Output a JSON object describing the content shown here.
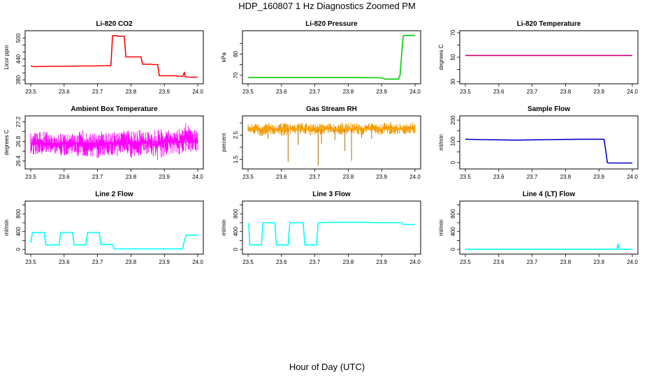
{
  "page": {
    "title": "HDP_160807  1 Hz Diagnostics Zoomed PM",
    "xlabel": "Hour of Day (UTC)"
  },
  "chart_data": [
    {
      "type": "line",
      "title": "Li-820 CO2",
      "ylabel": "Licor ppm",
      "color": "#ff0000",
      "xlim": [
        23.5,
        24.0
      ],
      "ylim": [
        375,
        515
      ],
      "xticks": [
        "23.5",
        "23.6",
        "23.7",
        "23.8",
        "23.9",
        "24.0"
      ],
      "yticks": [
        380,
        440,
        500
      ],
      "yticks_minor": [
        400,
        420,
        460,
        480
      ],
      "series": [
        {
          "x": [
            23.5,
            23.51,
            23.55,
            23.6,
            23.65,
            23.69,
            23.73,
            23.74,
            23.745,
            23.76,
            23.76,
            23.78,
            23.785,
            23.83,
            23.835,
            23.86,
            23.865,
            23.88,
            23.885,
            23.93,
            23.955,
            23.96,
            23.962,
            23.97,
            24.0
          ],
          "y": [
            420,
            418,
            419,
            419,
            420,
            420,
            421,
            421,
            507,
            507,
            505,
            505,
            446,
            446,
            425,
            425,
            424,
            424,
            392,
            392,
            390,
            402,
            390,
            388,
            388
          ]
        }
      ]
    },
    {
      "type": "line",
      "title": "Li-820 Pressure",
      "ylabel": "kPa",
      "color": "#00cc00",
      "xlim": [
        23.5,
        24.0
      ],
      "ylim": [
        67,
        90
      ],
      "xticks": [
        "23.5",
        "23.6",
        "23.7",
        "23.8",
        "23.9",
        "24.0"
      ],
      "yticks": [
        70,
        80
      ],
      "yticks_minor": [
        75,
        85
      ],
      "series": [
        {
          "x": [
            23.5,
            23.6,
            23.7,
            23.8,
            23.9,
            23.91,
            23.95,
            23.955,
            23.96,
            23.963,
            23.965,
            23.97,
            24.0
          ],
          "y": [
            69,
            69,
            69,
            69,
            68.8,
            68.2,
            68.2,
            70,
            80,
            86,
            88.5,
            88.8,
            88.8
          ]
        }
      ]
    },
    {
      "type": "line",
      "title": "Li-820 Temperature",
      "ylabel": "degrees C",
      "color": "#cc0077",
      "xlim": [
        23.5,
        24.0
      ],
      "ylim": [
        30,
        70
      ],
      "xticks": [
        "23.5",
        "23.6",
        "23.7",
        "23.8",
        "23.9",
        "24.0"
      ],
      "yticks": [
        30,
        50,
        70
      ],
      "yticks_minor": [
        40,
        60
      ],
      "series": [
        {
          "x": [
            23.5,
            24.0
          ],
          "y": [
            51.5,
            51.5
          ]
        }
      ]
    },
    {
      "type": "line",
      "title": "Ambient Box Temperature",
      "ylabel": "degrees C",
      "color": "#ff00ff",
      "xlim": [
        23.5,
        24.0
      ],
      "ylim": [
        26.28,
        27.28
      ],
      "xticks": [
        "23.5",
        "23.6",
        "23.7",
        "23.8",
        "23.9",
        "24.0"
      ],
      "yticks": [
        26.4,
        26.8,
        27.2
      ],
      "yticks_minor": [
        26.6,
        27.0
      ],
      "series": [
        {
          "x": [
            23.5,
            23.52,
            23.54,
            23.56,
            23.58,
            23.6,
            23.62,
            23.64,
            23.66,
            23.68,
            23.7,
            23.72,
            23.74,
            23.76,
            23.78,
            23.8,
            23.82,
            23.84,
            23.86,
            23.88,
            23.9,
            23.92,
            23.94,
            23.96,
            23.98,
            24.0
          ],
          "y": [
            26.75,
            26.75,
            26.76,
            26.75,
            26.76,
            26.75,
            26.75,
            26.76,
            26.75,
            26.76,
            26.76,
            26.76,
            26.77,
            26.77,
            26.77,
            26.77,
            26.78,
            26.78,
            26.78,
            26.79,
            26.79,
            26.8,
            26.8,
            26.8,
            26.81,
            26.81
          ]
        }
      ],
      "band": {
        "x": [
          23.5,
          23.52,
          23.54,
          23.56,
          23.58,
          23.6,
          23.62,
          23.64,
          23.66,
          23.68,
          23.7,
          23.72,
          23.74,
          23.76,
          23.78,
          23.8,
          23.82,
          23.84,
          23.86,
          23.88,
          23.9,
          23.92,
          23.94,
          23.96,
          23.98,
          24.0
        ],
        "lo": [
          26.55,
          26.5,
          26.5,
          26.55,
          26.5,
          26.5,
          26.55,
          26.5,
          26.45,
          26.45,
          26.45,
          26.5,
          26.5,
          26.5,
          26.55,
          26.45,
          26.5,
          26.55,
          26.5,
          26.4,
          26.5,
          26.55,
          26.5,
          26.55,
          26.55,
          26.6
        ],
        "hi": [
          27.0,
          27.0,
          27.0,
          27.0,
          26.95,
          27.0,
          26.95,
          27.0,
          27.05,
          27.0,
          27.0,
          27.0,
          27.0,
          27.0,
          27.05,
          27.0,
          27.05,
          27.0,
          27.0,
          27.05,
          27.05,
          27.05,
          27.05,
          27.2,
          27.1,
          27.0
        ]
      }
    },
    {
      "type": "line",
      "title": "Gas Stream RH",
      "ylabel": "percent",
      "color": "#ffa500",
      "color_dark": "#b06e00",
      "xlim": [
        23.5,
        24.0
      ],
      "ylim": [
        1.2,
        3.2
      ],
      "xticks": [
        "23.5",
        "23.6",
        "23.7",
        "23.8",
        "23.9",
        "24.0"
      ],
      "yticks": [
        1.5,
        2.5
      ],
      "yticks_minor": [
        2.0,
        3.0
      ],
      "series": [
        {
          "x": [
            23.5,
            23.52,
            23.54,
            23.56,
            23.58,
            23.6,
            23.62,
            23.64,
            23.66,
            23.68,
            23.7,
            23.72,
            23.74,
            23.76,
            23.78,
            23.8,
            23.82,
            23.84,
            23.86,
            23.88,
            23.9,
            23.92,
            23.94,
            23.96,
            23.98,
            24.0
          ],
          "y": [
            2.75,
            2.75,
            2.74,
            2.75,
            2.75,
            2.74,
            2.75,
            2.74,
            2.75,
            2.75,
            2.74,
            2.75,
            2.75,
            2.74,
            2.75,
            2.75,
            2.74,
            2.75,
            2.75,
            2.74,
            2.75,
            2.75,
            2.74,
            2.75,
            2.75,
            2.74
          ]
        }
      ],
      "band": {
        "x": [
          23.5,
          23.52,
          23.54,
          23.56,
          23.58,
          23.6,
          23.62,
          23.64,
          23.66,
          23.68,
          23.7,
          23.72,
          23.74,
          23.76,
          23.78,
          23.8,
          23.82,
          23.84,
          23.86,
          23.88,
          23.9,
          23.92,
          23.94,
          23.96,
          23.98,
          24.0
        ],
        "lo": [
          2.55,
          2.5,
          2.45,
          2.55,
          2.5,
          2.45,
          2.5,
          2.55,
          2.5,
          2.5,
          2.45,
          2.5,
          2.55,
          2.5,
          2.45,
          2.5,
          2.55,
          2.5,
          2.55,
          2.5,
          2.5,
          2.55,
          2.5,
          2.55,
          2.5,
          2.5
        ],
        "hi": [
          2.95,
          3.0,
          2.95,
          3.0,
          2.95,
          3.0,
          3.0,
          2.95,
          3.0,
          3.0,
          2.95,
          3.0,
          3.0,
          2.95,
          3.0,
          3.0,
          3.0,
          2.95,
          3.0,
          3.0,
          3.0,
          3.05,
          3.0,
          3.0,
          3.05,
          3.05
        ]
      },
      "spikes": [
        {
          "x": 23.56,
          "y": 2.35
        },
        {
          "x": 23.62,
          "y": 1.4
        },
        {
          "x": 23.65,
          "y": 2.1
        },
        {
          "x": 23.71,
          "y": 1.25
        },
        {
          "x": 23.72,
          "y": 2.15
        },
        {
          "x": 23.76,
          "y": 2.3
        },
        {
          "x": 23.79,
          "y": 1.85
        },
        {
          "x": 23.81,
          "y": 1.45
        },
        {
          "x": 23.84,
          "y": 2.4
        },
        {
          "x": 23.87,
          "y": 2.35
        }
      ]
    },
    {
      "type": "line",
      "title": "Sample Flow",
      "ylabel": "ml/min",
      "color": "#0000cc",
      "xlim": [
        23.5,
        24.0
      ],
      "ylim": [
        -20,
        210
      ],
      "xticks": [
        "23.5",
        "23.6",
        "23.7",
        "23.8",
        "23.9",
        "24.0"
      ],
      "yticks": [
        0,
        100,
        200
      ],
      "yticks_minor": [
        50,
        150
      ],
      "series": [
        {
          "x": [
            23.5,
            23.55,
            23.6,
            23.65,
            23.7,
            23.75,
            23.8,
            23.85,
            23.9,
            23.915,
            23.92,
            23.925,
            23.93,
            24.0
          ],
          "y": [
            110,
            108,
            107,
            106,
            107,
            108,
            109,
            110,
            110,
            110,
            60,
            0,
            -2,
            -2
          ]
        }
      ]
    },
    {
      "type": "line",
      "title": "Line 2 Flow",
      "ylabel": "ml/min",
      "color": "#00ffff",
      "xlim": [
        23.5,
        24.0
      ],
      "ylim": [
        -60,
        1040
      ],
      "xticks": [
        "23.5",
        "23.6",
        "23.7",
        "23.8",
        "23.9",
        "24.0"
      ],
      "yticks": [
        0,
        400,
        800
      ],
      "yticks_minor": [
        200,
        600,
        1000
      ],
      "series": [
        {
          "x": [
            23.5,
            23.505,
            23.54,
            23.545,
            23.585,
            23.59,
            23.625,
            23.63,
            23.665,
            23.67,
            23.705,
            23.71,
            23.745,
            23.75,
            23.955,
            23.96,
            23.965,
            24.0
          ],
          "y": [
            150,
            380,
            380,
            100,
            100,
            380,
            380,
            100,
            100,
            380,
            380,
            110,
            110,
            10,
            10,
            200,
            320,
            320
          ]
        }
      ]
    },
    {
      "type": "line",
      "title": "Line 3 Flow",
      "ylabel": "ml/min",
      "color": "#00ffff",
      "xlim": [
        23.5,
        24.0
      ],
      "ylim": [
        -60,
        1040
      ],
      "xticks": [
        "23.5",
        "23.6",
        "23.7",
        "23.8",
        "23.9",
        "24.0"
      ],
      "yticks": [
        0,
        400,
        800
      ],
      "yticks_minor": [
        200,
        600,
        1000
      ],
      "series": [
        {
          "x": [
            23.5,
            23.502,
            23.505,
            23.54,
            23.545,
            23.58,
            23.585,
            23.62,
            23.625,
            23.665,
            23.67,
            23.705,
            23.71,
            23.75,
            23.85,
            23.9,
            23.96,
            23.965,
            24.0
          ],
          "y": [
            580,
            580,
            100,
            100,
            600,
            600,
            100,
            100,
            600,
            600,
            100,
            100,
            600,
            610,
            610,
            600,
            600,
            560,
            560
          ]
        }
      ]
    },
    {
      "type": "line",
      "title": "Line 4 (LT) Flow",
      "ylabel": "ml/min",
      "color": "#00ffff",
      "xlim": [
        23.5,
        24.0
      ],
      "ylim": [
        -60,
        1040
      ],
      "xticks": [
        "23.5",
        "23.6",
        "23.7",
        "23.8",
        "23.9",
        "24.0"
      ],
      "yticks": [
        0,
        400,
        800
      ],
      "yticks_minor": [
        200,
        600,
        1000
      ],
      "series": [
        {
          "x": [
            23.5,
            23.955,
            23.956,
            23.958,
            23.96,
            24.0
          ],
          "y": [
            2,
            2,
            110,
            110,
            2,
            2
          ]
        }
      ]
    }
  ]
}
